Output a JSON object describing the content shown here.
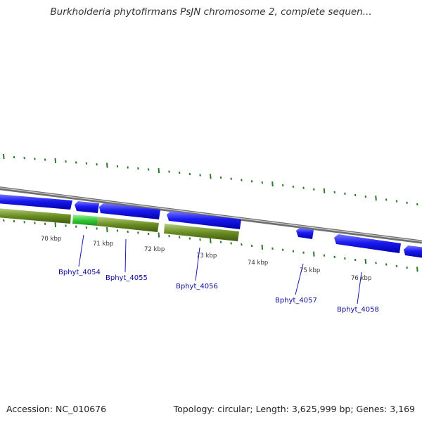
{
  "title": "Burkholderia phytofirmans PsJN chromosome 2, complete sequen...",
  "footer": {
    "accession": "Accession: NC_010676",
    "summary": "Topology: circular; Length: 3,625,999 bp; Genes: 3,169"
  },
  "scale_labels": [
    "70 kbp",
    "71 kbp",
    "72 kbp",
    "73 kbp",
    "74 kbp",
    "75 kbp",
    "76 kbp"
  ],
  "gene_labels": [
    "Bphyt_4054",
    "Bphyt_4055",
    "Bphyt_4056",
    "Bphyt_4057",
    "Bphyt_4058"
  ],
  "colors": {
    "backbone": "#8a8a8a",
    "gene": "#1010e0",
    "feature_track": "#6b8e23",
    "feature_highlight": "#33cc33",
    "ticks": "#2a7a2a",
    "label": "#0a0a9a"
  }
}
